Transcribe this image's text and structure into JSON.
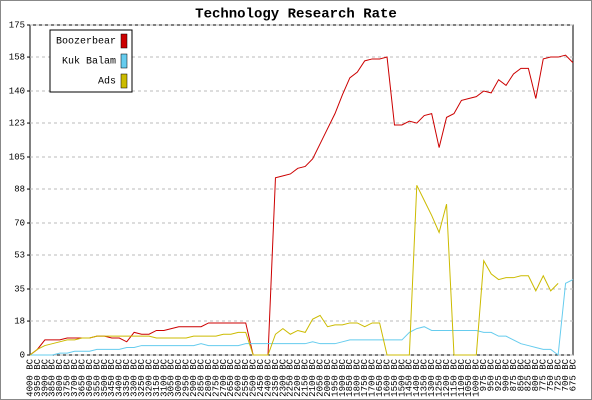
{
  "chart_data": {
    "type": "line",
    "title": "Technology Research Rate",
    "categories": [
      "4000 BC",
      "3950 BC",
      "3900 BC",
      "3850 BC",
      "3800 BC",
      "3750 BC",
      "3700 BC",
      "3650 BC",
      "3600 BC",
      "3550 BC",
      "3500 BC",
      "3450 BC",
      "3400 BC",
      "3350 BC",
      "3300 BC",
      "3250 BC",
      "3200 BC",
      "3150 BC",
      "3100 BC",
      "3050 BC",
      "3000 BC",
      "2950 BC",
      "2900 BC",
      "2850 BC",
      "2800 BC",
      "2750 BC",
      "2700 BC",
      "2650 BC",
      "2600 BC",
      "2550 BC",
      "2500 BC",
      "2450 BC",
      "2400 BC",
      "2350 BC",
      "2300 BC",
      "2250 BC",
      "2200 BC",
      "2150 BC",
      "2100 BC",
      "2050 BC",
      "2000 BC",
      "1950 BC",
      "1900 BC",
      "1850 BC",
      "1800 BC",
      "1750 BC",
      "1700 BC",
      "1650 BC",
      "1600 BC",
      "1550 BC",
      "1500 BC",
      "1450 BC",
      "1400 BC",
      "1350 BC",
      "1300 BC",
      "1250 BC",
      "1200 BC",
      "1150 BC",
      "1100 BC",
      "1050 BC",
      "1000 BC",
      "975 BC",
      "950 BC",
      "925 BC",
      "900 BC",
      "875 BC",
      "850 BC",
      "825 BC",
      "800 BC",
      "775 BC",
      "750 BC",
      "725 BC",
      "700 BC",
      "675 BC"
    ],
    "series": [
      {
        "name": "Boozerbear",
        "color": "#cc0000",
        "values": [
          0,
          3,
          8,
          8,
          8,
          9,
          9,
          9,
          9,
          10,
          10,
          9,
          9,
          7,
          12,
          11,
          11,
          13,
          13,
          14,
          15,
          15,
          15,
          15,
          17,
          17,
          17,
          17,
          17,
          17,
          0,
          0,
          0,
          94,
          95,
          96,
          99,
          100,
          104,
          112,
          120,
          128,
          138,
          147,
          150,
          156,
          157,
          157,
          158,
          122,
          122,
          124,
          123,
          127,
          128,
          110,
          126,
          128,
          135,
          136,
          137,
          140,
          139,
          146,
          143,
          149,
          152,
          152,
          136,
          157,
          158,
          158,
          159,
          155
        ]
      },
      {
        "name": "Kuk Balam",
        "color": "#66ccee",
        "values": [
          0,
          0,
          0,
          0,
          1,
          1,
          2,
          2,
          2,
          3,
          3,
          3,
          3,
          4,
          4,
          5,
          5,
          5,
          5,
          5,
          5,
          5,
          5,
          6,
          5,
          5,
          5,
          5,
          5,
          6,
          6,
          6,
          6,
          6,
          6,
          6,
          6,
          6,
          7,
          6,
          6,
          6,
          7,
          8,
          8,
          8,
          8,
          8,
          8,
          8,
          8,
          12,
          14,
          15,
          13,
          13,
          13,
          13,
          13,
          13,
          13,
          12,
          12,
          10,
          10,
          8,
          6,
          5,
          4,
          3,
          3,
          0,
          38,
          40
        ]
      },
      {
        "name": "Ads",
        "color": "#ccbb00",
        "values": [
          0,
          3,
          5,
          6,
          7,
          8,
          8,
          9,
          9,
          10,
          10,
          10,
          10,
          10,
          10,
          10,
          10,
          9,
          9,
          9,
          9,
          9,
          10,
          10,
          10,
          10,
          11,
          11,
          12,
          12,
          0,
          0,
          0,
          11,
          14,
          11,
          13,
          12,
          19,
          21,
          15,
          16,
          16,
          17,
          17,
          15,
          17,
          17,
          0,
          0,
          0,
          0,
          90,
          82,
          74,
          65,
          80,
          0,
          0,
          0,
          0,
          50,
          43,
          40,
          41,
          41,
          42,
          42,
          34,
          42,
          34,
          38,
          null,
          null
        ]
      }
    ],
    "ylim": [
      0,
      175
    ],
    "yticks": [
      0,
      18,
      35,
      53,
      70,
      88,
      105,
      123,
      140,
      158,
      175
    ],
    "grid": true
  }
}
